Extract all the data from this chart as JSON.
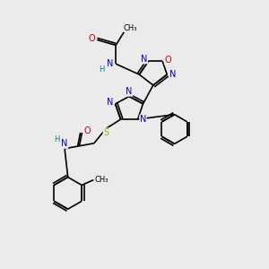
{
  "background_color": "#ebebeb",
  "atom_colors": {
    "C": "#000000",
    "N": "#0000cc",
    "O": "#cc0000",
    "S": "#aaaa00",
    "H": "#008080"
  },
  "figsize": [
    3.0,
    3.0
  ],
  "dpi": 100
}
